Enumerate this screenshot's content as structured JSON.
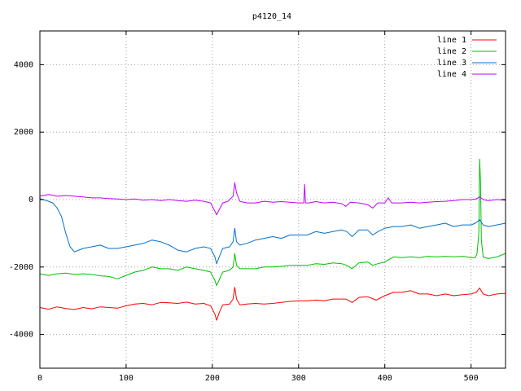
{
  "chart_data": {
    "type": "line",
    "title": "p4120_14",
    "xlabel": "",
    "ylabel": "",
    "xlim": [
      0,
      540
    ],
    "ylim": [
      -5000,
      5000
    ],
    "x_ticks": [
      0,
      100,
      200,
      300,
      400,
      500
    ],
    "y_ticks": [
      -4000,
      -2000,
      0,
      2000,
      4000
    ],
    "grid": true,
    "legend_position": "top-right",
    "series": [
      {
        "name": "line 1",
        "color": "#ff0000",
        "points": [
          [
            0,
            -3200
          ],
          [
            10,
            -3250
          ],
          [
            20,
            -3180
          ],
          [
            30,
            -3230
          ],
          [
            40,
            -3260
          ],
          [
            50,
            -3200
          ],
          [
            60,
            -3240
          ],
          [
            70,
            -3180
          ],
          [
            80,
            -3200
          ],
          [
            90,
            -3220
          ],
          [
            100,
            -3150
          ],
          [
            110,
            -3100
          ],
          [
            120,
            -3080
          ],
          [
            130,
            -3120
          ],
          [
            140,
            -3050
          ],
          [
            150,
            -3060
          ],
          [
            160,
            -3080
          ],
          [
            170,
            -3040
          ],
          [
            180,
            -3100
          ],
          [
            190,
            -3080
          ],
          [
            198,
            -3150
          ],
          [
            203,
            -3400
          ],
          [
            205,
            -3580
          ],
          [
            208,
            -3350
          ],
          [
            212,
            -3120
          ],
          [
            220,
            -3100
          ],
          [
            224,
            -2950
          ],
          [
            226,
            -2600
          ],
          [
            228,
            -2950
          ],
          [
            232,
            -3120
          ],
          [
            240,
            -3100
          ],
          [
            250,
            -3080
          ],
          [
            260,
            -3100
          ],
          [
            270,
            -3080
          ],
          [
            280,
            -3050
          ],
          [
            290,
            -3020
          ],
          [
            300,
            -3000
          ],
          [
            310,
            -3000
          ],
          [
            320,
            -2980
          ],
          [
            330,
            -3000
          ],
          [
            340,
            -2950
          ],
          [
            350,
            -2950
          ],
          [
            355,
            -2950
          ],
          [
            362,
            -3050
          ],
          [
            370,
            -2900
          ],
          [
            380,
            -2880
          ],
          [
            390,
            -2980
          ],
          [
            400,
            -2850
          ],
          [
            410,
            -2750
          ],
          [
            420,
            -2750
          ],
          [
            430,
            -2700
          ],
          [
            440,
            -2800
          ],
          [
            450,
            -2800
          ],
          [
            460,
            -2850
          ],
          [
            470,
            -2800
          ],
          [
            480,
            -2850
          ],
          [
            490,
            -2820
          ],
          [
            500,
            -2800
          ],
          [
            506,
            -2750
          ],
          [
            510,
            -2620
          ],
          [
            514,
            -2800
          ],
          [
            520,
            -2850
          ],
          [
            530,
            -2800
          ],
          [
            540,
            -2780
          ]
        ]
      },
      {
        "name": "line 2",
        "color": "#00c000",
        "points": [
          [
            0,
            -2200
          ],
          [
            10,
            -2250
          ],
          [
            20,
            -2200
          ],
          [
            30,
            -2180
          ],
          [
            40,
            -2220
          ],
          [
            50,
            -2200
          ],
          [
            60,
            -2220
          ],
          [
            70,
            -2260
          ],
          [
            80,
            -2280
          ],
          [
            90,
            -2350
          ],
          [
            100,
            -2250
          ],
          [
            110,
            -2150
          ],
          [
            120,
            -2100
          ],
          [
            130,
            -2000
          ],
          [
            140,
            -2050
          ],
          [
            150,
            -2050
          ],
          [
            160,
            -2100
          ],
          [
            170,
            -2000
          ],
          [
            180,
            -2050
          ],
          [
            190,
            -2100
          ],
          [
            198,
            -2150
          ],
          [
            203,
            -2400
          ],
          [
            205,
            -2550
          ],
          [
            208,
            -2380
          ],
          [
            212,
            -2150
          ],
          [
            220,
            -2100
          ],
          [
            224,
            -2000
          ],
          [
            226,
            -1600
          ],
          [
            228,
            -1950
          ],
          [
            232,
            -2050
          ],
          [
            240,
            -2050
          ],
          [
            250,
            -2050
          ],
          [
            260,
            -2000
          ],
          [
            270,
            -2000
          ],
          [
            280,
            -1980
          ],
          [
            290,
            -1950
          ],
          [
            300,
            -1950
          ],
          [
            310,
            -1950
          ],
          [
            320,
            -1900
          ],
          [
            330,
            -1920
          ],
          [
            340,
            -1880
          ],
          [
            350,
            -1900
          ],
          [
            356,
            -1950
          ],
          [
            362,
            -2050
          ],
          [
            370,
            -1880
          ],
          [
            380,
            -1850
          ],
          [
            386,
            -1950
          ],
          [
            392,
            -1900
          ],
          [
            400,
            -1850
          ],
          [
            410,
            -1700
          ],
          [
            420,
            -1720
          ],
          [
            430,
            -1700
          ],
          [
            440,
            -1720
          ],
          [
            450,
            -1680
          ],
          [
            460,
            -1700
          ],
          [
            470,
            -1680
          ],
          [
            480,
            -1700
          ],
          [
            490,
            -1680
          ],
          [
            500,
            -1720
          ],
          [
            505,
            -1720
          ],
          [
            507,
            -1600
          ],
          [
            509,
            -1000
          ],
          [
            510,
            1200
          ],
          [
            511,
            500
          ],
          [
            512,
            -1200
          ],
          [
            514,
            -1700
          ],
          [
            520,
            -1750
          ],
          [
            530,
            -1700
          ],
          [
            540,
            -1600
          ]
        ]
      },
      {
        "name": "line 3",
        "color": "#0070d0",
        "points": [
          [
            0,
            30
          ],
          [
            10,
            -50
          ],
          [
            15,
            -100
          ],
          [
            20,
            -250
          ],
          [
            25,
            -500
          ],
          [
            30,
            -1000
          ],
          [
            35,
            -1400
          ],
          [
            40,
            -1550
          ],
          [
            50,
            -1450
          ],
          [
            60,
            -1400
          ],
          [
            70,
            -1350
          ],
          [
            80,
            -1450
          ],
          [
            90,
            -1450
          ],
          [
            100,
            -1400
          ],
          [
            110,
            -1350
          ],
          [
            120,
            -1300
          ],
          [
            130,
            -1200
          ],
          [
            140,
            -1250
          ],
          [
            150,
            -1350
          ],
          [
            160,
            -1500
          ],
          [
            170,
            -1550
          ],
          [
            180,
            -1450
          ],
          [
            190,
            -1400
          ],
          [
            198,
            -1450
          ],
          [
            203,
            -1700
          ],
          [
            205,
            -1900
          ],
          [
            208,
            -1700
          ],
          [
            212,
            -1450
          ],
          [
            220,
            -1400
          ],
          [
            224,
            -1250
          ],
          [
            226,
            -850
          ],
          [
            228,
            -1250
          ],
          [
            232,
            -1350
          ],
          [
            240,
            -1300
          ],
          [
            250,
            -1200
          ],
          [
            260,
            -1150
          ],
          [
            270,
            -1100
          ],
          [
            280,
            -1150
          ],
          [
            290,
            -1050
          ],
          [
            300,
            -1050
          ],
          [
            310,
            -1050
          ],
          [
            320,
            -950
          ],
          [
            330,
            -1000
          ],
          [
            340,
            -950
          ],
          [
            350,
            -900
          ],
          [
            356,
            -950
          ],
          [
            362,
            -1100
          ],
          [
            370,
            -900
          ],
          [
            380,
            -900
          ],
          [
            386,
            -1050
          ],
          [
            392,
            -950
          ],
          [
            400,
            -850
          ],
          [
            410,
            -800
          ],
          [
            420,
            -800
          ],
          [
            430,
            -750
          ],
          [
            440,
            -850
          ],
          [
            450,
            -800
          ],
          [
            460,
            -750
          ],
          [
            470,
            -700
          ],
          [
            480,
            -800
          ],
          [
            490,
            -750
          ],
          [
            500,
            -750
          ],
          [
            505,
            -700
          ],
          [
            510,
            -600
          ],
          [
            514,
            -750
          ],
          [
            520,
            -800
          ],
          [
            530,
            -750
          ],
          [
            540,
            -700
          ]
        ]
      },
      {
        "name": "line 4",
        "color": "#c000ff",
        "points": [
          [
            0,
            100
          ],
          [
            10,
            150
          ],
          [
            20,
            100
          ],
          [
            30,
            120
          ],
          [
            40,
            100
          ],
          [
            50,
            80
          ],
          [
            60,
            50
          ],
          [
            70,
            50
          ],
          [
            80,
            30
          ],
          [
            90,
            20
          ],
          [
            100,
            0
          ],
          [
            110,
            20
          ],
          [
            120,
            -20
          ],
          [
            130,
            0
          ],
          [
            140,
            -30
          ],
          [
            150,
            0
          ],
          [
            160,
            -30
          ],
          [
            170,
            -50
          ],
          [
            180,
            -20
          ],
          [
            190,
            -50
          ],
          [
            198,
            -100
          ],
          [
            202,
            -300
          ],
          [
            205,
            -450
          ],
          [
            208,
            -300
          ],
          [
            212,
            -100
          ],
          [
            218,
            -50
          ],
          [
            224,
            100
          ],
          [
            226,
            500
          ],
          [
            228,
            200
          ],
          [
            232,
            -50
          ],
          [
            240,
            -100
          ],
          [
            250,
            -100
          ],
          [
            260,
            -50
          ],
          [
            270,
            -80
          ],
          [
            280,
            -60
          ],
          [
            290,
            -80
          ],
          [
            300,
            -100
          ],
          [
            306,
            -100
          ],
          [
            307,
            450
          ],
          [
            308,
            -100
          ],
          [
            312,
            -100
          ],
          [
            320,
            -60
          ],
          [
            330,
            -100
          ],
          [
            340,
            -80
          ],
          [
            350,
            -120
          ],
          [
            355,
            -200
          ],
          [
            360,
            -80
          ],
          [
            370,
            -100
          ],
          [
            380,
            -150
          ],
          [
            386,
            -250
          ],
          [
            392,
            -100
          ],
          [
            400,
            -100
          ],
          [
            404,
            50
          ],
          [
            408,
            -100
          ],
          [
            420,
            -100
          ],
          [
            430,
            -80
          ],
          [
            440,
            -100
          ],
          [
            450,
            -80
          ],
          [
            460,
            -60
          ],
          [
            470,
            -50
          ],
          [
            480,
            -30
          ],
          [
            490,
            0
          ],
          [
            500,
            0
          ],
          [
            506,
            20
          ],
          [
            510,
            80
          ],
          [
            514,
            0
          ],
          [
            520,
            -30
          ],
          [
            530,
            0
          ],
          [
            540,
            -20
          ]
        ]
      }
    ]
  }
}
